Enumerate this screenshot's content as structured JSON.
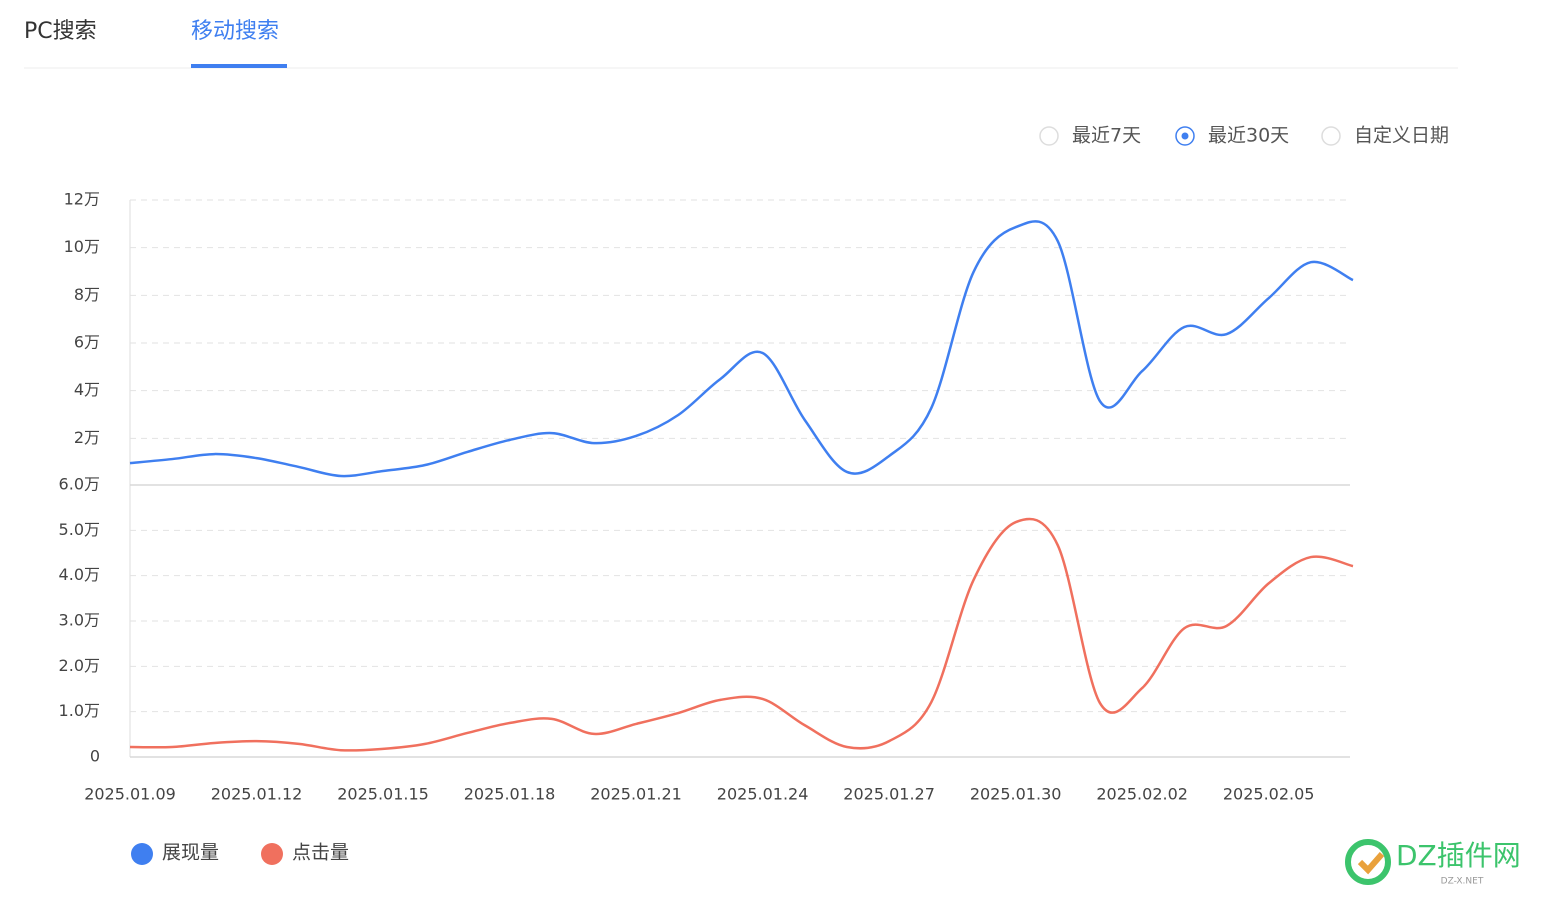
{
  "tabs": [
    "PC搜索",
    "移动搜索"
  ],
  "active_tab": 1,
  "range_options": [
    "最近7天",
    "最近30天",
    "自定义日期"
  ],
  "selected_range": 1,
  "watermark": {
    "title": "DZ插件网",
    "subtitle": "DZ-X.NET"
  },
  "chart_data": [
    {
      "type": "line",
      "series": [
        {
          "name": "展现量",
          "color": "#3f7ff0",
          "values": [
            9600,
            11300,
            13400,
            11700,
            8000,
            4200,
            6300,
            8800,
            14300,
            19300,
            22200,
            18000,
            21000,
            29800,
            44900,
            55800,
            27700,
            5900,
            12600,
            32700,
            89700,
            108600,
            102700,
            35600,
            48200,
            66700,
            63700,
            78800,
            93900,
            86400
          ]
        }
      ],
      "ylim": [
        0,
        120000
      ],
      "yticks": [
        {
          "value": 20000,
          "label": "2万"
        },
        {
          "value": 40000,
          "label": "4万"
        },
        {
          "value": 60000,
          "label": "6万"
        },
        {
          "value": 80000,
          "label": "8万"
        },
        {
          "value": 100000,
          "label": "10万"
        },
        {
          "value": 120000,
          "label": "12万"
        }
      ],
      "grid": true
    },
    {
      "type": "line",
      "categories": [
        "2025.01.09",
        null,
        null,
        "2025.01.12",
        null,
        null,
        "2025.01.15",
        null,
        null,
        "2025.01.18",
        null,
        null,
        "2025.01.21",
        null,
        null,
        "2025.01.24",
        null,
        null,
        "2025.01.27",
        null,
        null,
        "2025.01.30",
        null,
        null,
        "2025.02.02",
        null,
        null,
        "2025.02.05",
        null,
        null
      ],
      "series": [
        {
          "name": "点击量",
          "color": "#f0705e",
          "values": [
            2200,
            2200,
            3100,
            3500,
            2900,
            1500,
            1800,
            2900,
            5300,
            7500,
            8400,
            5100,
            7300,
            9700,
            12600,
            12800,
            7000,
            2200,
            3500,
            12100,
            39000,
            51800,
            46700,
            11900,
            15200,
            28400,
            28900,
            38300,
            44100,
            42100
          ]
        }
      ],
      "ylim": [
        0,
        60000
      ],
      "yticks": [
        0,
        {
          "value": 10000,
          "label": "1.0万"
        },
        {
          "value": 20000,
          "label": "2.0万"
        },
        {
          "value": 30000,
          "label": "3.0万"
        },
        {
          "value": 40000,
          "label": "4.0万"
        },
        {
          "value": 50000,
          "label": "5.0万"
        },
        {
          "value": 60000,
          "label": "6.0万"
        }
      ],
      "grid": true
    }
  ]
}
